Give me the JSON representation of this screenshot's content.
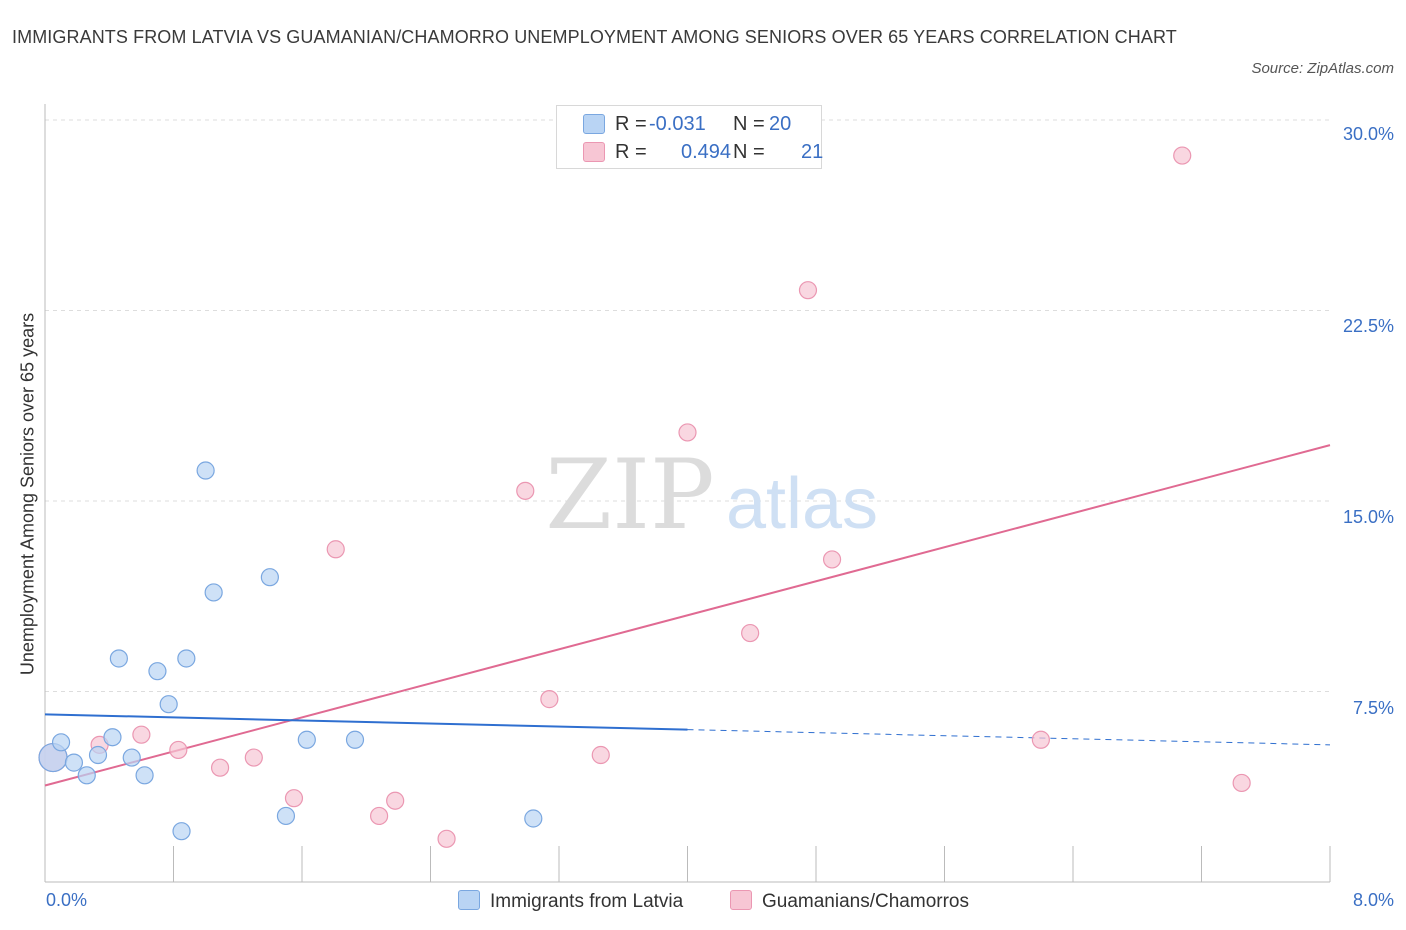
{
  "title": "IMMIGRANTS FROM LATVIA VS GUAMANIAN/CHAMORRO UNEMPLOYMENT AMONG SENIORS OVER 65 YEARS CORRELATION CHART",
  "source": "Source: ZipAtlas.com",
  "watermark": {
    "zip": "ZIP",
    "atlas": "atlas"
  },
  "legend": {
    "row1": {
      "r_label": "R =",
      "r_value": "-0.031",
      "n_label": "N =",
      "n_value": "20"
    },
    "row2": {
      "r_label": "R =",
      "r_value": "0.494",
      "n_label": "N =",
      "n_value": "21"
    }
  },
  "colors": {
    "blue_fill": "#b9d4f4",
    "blue_stroke": "#7aa7e0",
    "blue_line": "#2f6fd0",
    "pink_fill": "#f7c6d4",
    "pink_stroke": "#eb97b2",
    "pink_line": "#e06a92",
    "tick_text": "#3a6fc4",
    "grid": "#dddddd"
  },
  "chart_data": {
    "type": "scatter",
    "title": "IMMIGRANTS FROM LATVIA VS GUAMANIAN/CHAMORRO UNEMPLOYMENT AMONG SENIORS OVER 65 YEARS CORRELATION CHART",
    "xlabel": "",
    "ylabel": "Unemployment Among Seniors over 65 years",
    "xlim": [
      0,
      8
    ],
    "ylim": [
      0,
      30
    ],
    "x_tick_labels": [
      "0.0%",
      "8.0%"
    ],
    "y_ticks": [
      7.5,
      15,
      22.5,
      30
    ],
    "y_tick_labels": [
      "7.5%",
      "15.0%",
      "22.5%",
      "30.0%"
    ],
    "series": [
      {
        "name": "Immigrants from Latvia",
        "color": "blue",
        "r": -0.031,
        "n": 20,
        "points": [
          [
            0.05,
            4.9
          ],
          [
            0.1,
            5.5
          ],
          [
            0.18,
            4.7
          ],
          [
            0.26,
            4.2
          ],
          [
            0.33,
            5.0
          ],
          [
            0.42,
            5.7
          ],
          [
            0.46,
            8.8
          ],
          [
            0.54,
            4.9
          ],
          [
            0.62,
            4.2
          ],
          [
            0.7,
            8.3
          ],
          [
            0.77,
            7.0
          ],
          [
            0.85,
            2.0
          ],
          [
            0.88,
            8.8
          ],
          [
            1.0,
            16.2
          ],
          [
            1.05,
            11.4
          ],
          [
            1.4,
            12.0
          ],
          [
            1.5,
            2.6
          ],
          [
            1.63,
            5.6
          ],
          [
            1.93,
            5.6
          ],
          [
            3.04,
            2.5
          ]
        ],
        "trend": {
          "x": [
            0,
            4.0
          ],
          "y": [
            6.6,
            6.0
          ]
        },
        "trend_extension": {
          "x": [
            4.0,
            8.0
          ],
          "y": [
            6.0,
            5.4
          ]
        }
      },
      {
        "name": "Guamanians/Chamorros",
        "color": "pink",
        "r": 0.494,
        "n": 21,
        "points": [
          [
            0.05,
            4.9
          ],
          [
            0.34,
            5.4
          ],
          [
            0.6,
            5.8
          ],
          [
            0.83,
            5.2
          ],
          [
            1.09,
            4.5
          ],
          [
            1.3,
            4.9
          ],
          [
            1.55,
            3.3
          ],
          [
            1.81,
            13.1
          ],
          [
            2.08,
            2.6
          ],
          [
            2.18,
            3.2
          ],
          [
            2.5,
            1.7
          ],
          [
            2.99,
            15.4
          ],
          [
            3.14,
            7.2
          ],
          [
            3.46,
            5.0
          ],
          [
            4.0,
            17.7
          ],
          [
            4.39,
            9.8
          ],
          [
            4.75,
            23.3
          ],
          [
            4.9,
            12.7
          ],
          [
            6.2,
            5.6
          ],
          [
            7.08,
            28.6
          ],
          [
            7.45,
            3.9
          ]
        ],
        "trend": {
          "x": [
            0,
            8.0
          ],
          "y": [
            3.8,
            17.2
          ]
        }
      }
    ]
  }
}
